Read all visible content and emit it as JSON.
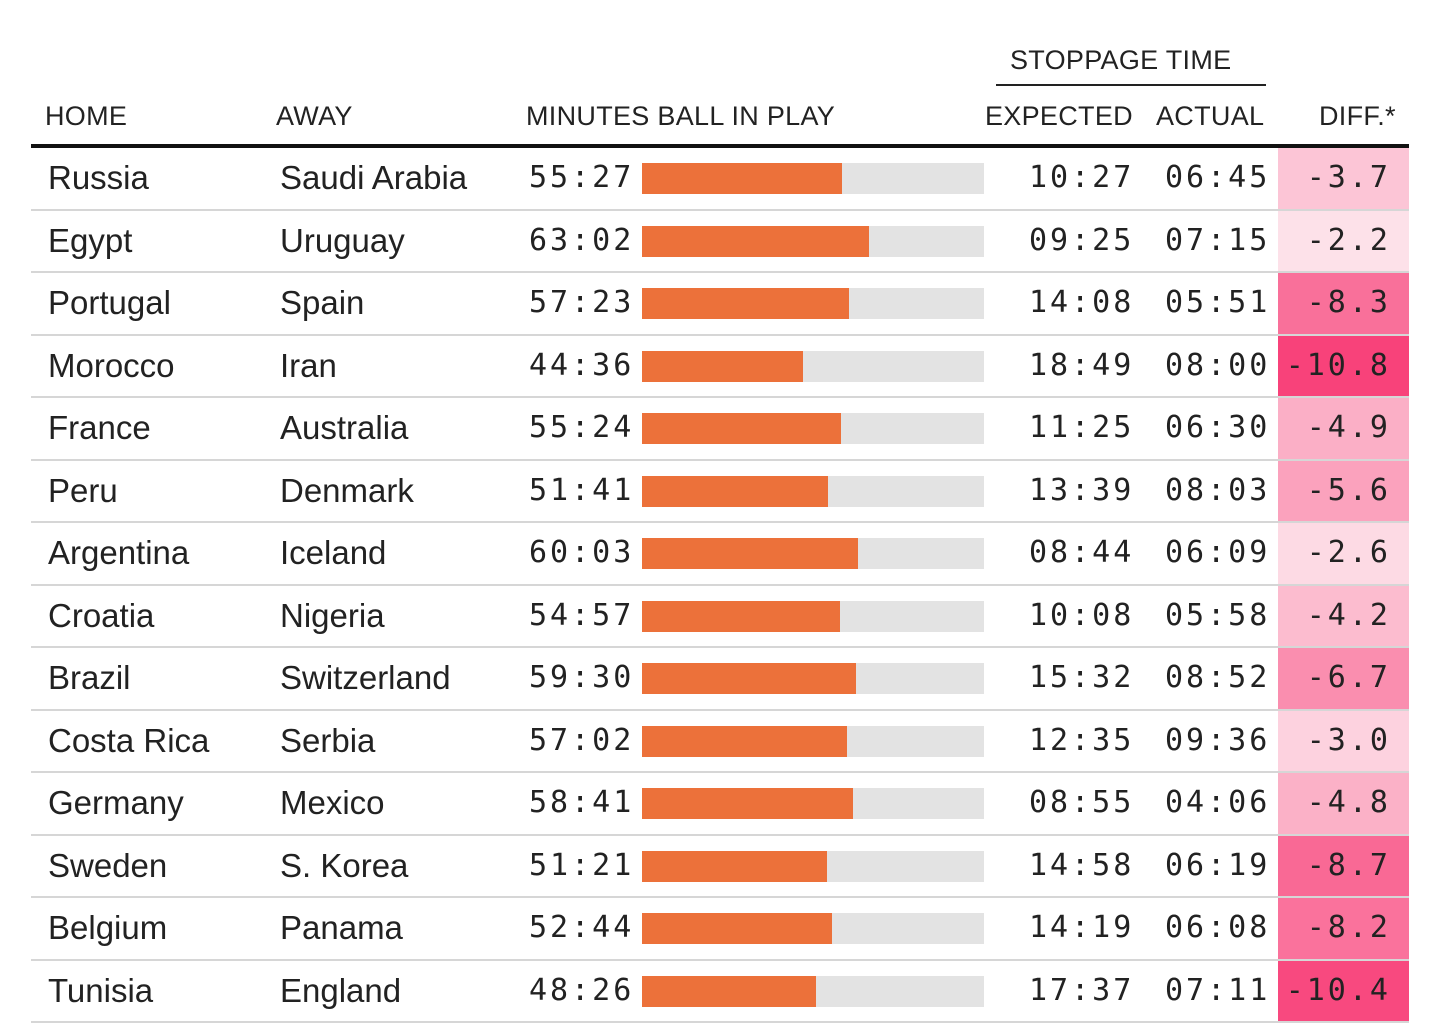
{
  "chart_data": {
    "type": "table",
    "group_header": "STOPPAGE TIME",
    "columns": [
      "HOME",
      "AWAY",
      "MINUTES BALL IN PLAY",
      "EXPECTED",
      "ACTUAL",
      "DIFF.*"
    ],
    "bar_max_minutes": 95,
    "rows": [
      {
        "home": "Russia",
        "away": "Saudi Arabia",
        "ball_in_play": "55:27",
        "ball_in_play_min": 55.45,
        "expected": "10:27",
        "actual": "06:45",
        "diff": "-3.7",
        "diff_value": -3.7
      },
      {
        "home": "Egypt",
        "away": "Uruguay",
        "ball_in_play": "63:02",
        "ball_in_play_min": 63.03,
        "expected": "09:25",
        "actual": "07:15",
        "diff": "-2.2",
        "diff_value": -2.2
      },
      {
        "home": "Portugal",
        "away": "Spain",
        "ball_in_play": "57:23",
        "ball_in_play_min": 57.38,
        "expected": "14:08",
        "actual": "05:51",
        "diff": "-8.3",
        "diff_value": -8.3
      },
      {
        "home": "Morocco",
        "away": "Iran",
        "ball_in_play": "44:36",
        "ball_in_play_min": 44.6,
        "expected": "18:49",
        "actual": "08:00",
        "diff": "-10.8",
        "diff_value": -10.8
      },
      {
        "home": "France",
        "away": "Australia",
        "ball_in_play": "55:24",
        "ball_in_play_min": 55.4,
        "expected": "11:25",
        "actual": "06:30",
        "diff": "-4.9",
        "diff_value": -4.9
      },
      {
        "home": "Peru",
        "away": "Denmark",
        "ball_in_play": "51:41",
        "ball_in_play_min": 51.68,
        "expected": "13:39",
        "actual": "08:03",
        "diff": "-5.6",
        "diff_value": -5.6
      },
      {
        "home": "Argentina",
        "away": "Iceland",
        "ball_in_play": "60:03",
        "ball_in_play_min": 60.05,
        "expected": "08:44",
        "actual": "06:09",
        "diff": "-2.6",
        "diff_value": -2.6
      },
      {
        "home": "Croatia",
        "away": "Nigeria",
        "ball_in_play": "54:57",
        "ball_in_play_min": 54.95,
        "expected": "10:08",
        "actual": "05:58",
        "diff": "-4.2",
        "diff_value": -4.2
      },
      {
        "home": "Brazil",
        "away": "Switzerland",
        "ball_in_play": "59:30",
        "ball_in_play_min": 59.5,
        "expected": "15:32",
        "actual": "08:52",
        "diff": "-6.7",
        "diff_value": -6.7
      },
      {
        "home": "Costa Rica",
        "away": "Serbia",
        "ball_in_play": "57:02",
        "ball_in_play_min": 57.03,
        "expected": "12:35",
        "actual": "09:36",
        "diff": "-3.0",
        "diff_value": -3.0
      },
      {
        "home": "Germany",
        "away": "Mexico",
        "ball_in_play": "58:41",
        "ball_in_play_min": 58.68,
        "expected": "08:55",
        "actual": "04:06",
        "diff": "-4.8",
        "diff_value": -4.8
      },
      {
        "home": "Sweden",
        "away": "S. Korea",
        "ball_in_play": "51:21",
        "ball_in_play_min": 51.35,
        "expected": "14:58",
        "actual": "06:19",
        "diff": "-8.7",
        "diff_value": -8.7
      },
      {
        "home": "Belgium",
        "away": "Panama",
        "ball_in_play": "52:44",
        "ball_in_play_min": 52.73,
        "expected": "14:19",
        "actual": "06:08",
        "diff": "-8.2",
        "diff_value": -8.2
      },
      {
        "home": "Tunisia",
        "away": "England",
        "ball_in_play": "48:26",
        "ball_in_play_min": 48.43,
        "expected": "17:37",
        "actual": "07:11",
        "diff": "-10.4",
        "diff_value": -10.4
      }
    ],
    "colors": {
      "bar": "#ec713a",
      "track": "#e3e3e3",
      "diff_light": "#fde1e9",
      "diff_dark": "#f8427a"
    }
  }
}
